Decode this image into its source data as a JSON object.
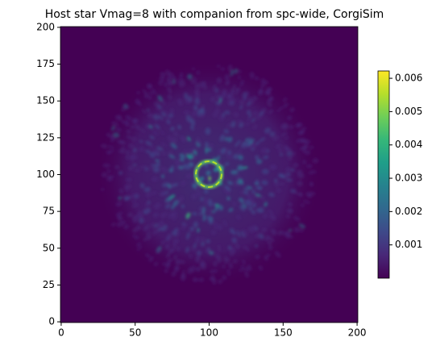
{
  "chart_data": {
    "type": "image",
    "title": "Host star Vmag=8 with companion from spc-wide, CorgiSim",
    "xlim": [
      -0.5,
      200.5
    ],
    "ylim": [
      -0.5,
      200.5
    ],
    "xticks": [
      0,
      50,
      100,
      150,
      200
    ],
    "yticks": [
      0,
      25,
      50,
      75,
      100,
      125,
      150,
      175,
      200
    ],
    "colormap": "viridis",
    "clim": [
      0,
      0.00622
    ],
    "colorbar_ticks": [
      0.001,
      0.002,
      0.003,
      0.004,
      0.005,
      0.006
    ]
  }
}
